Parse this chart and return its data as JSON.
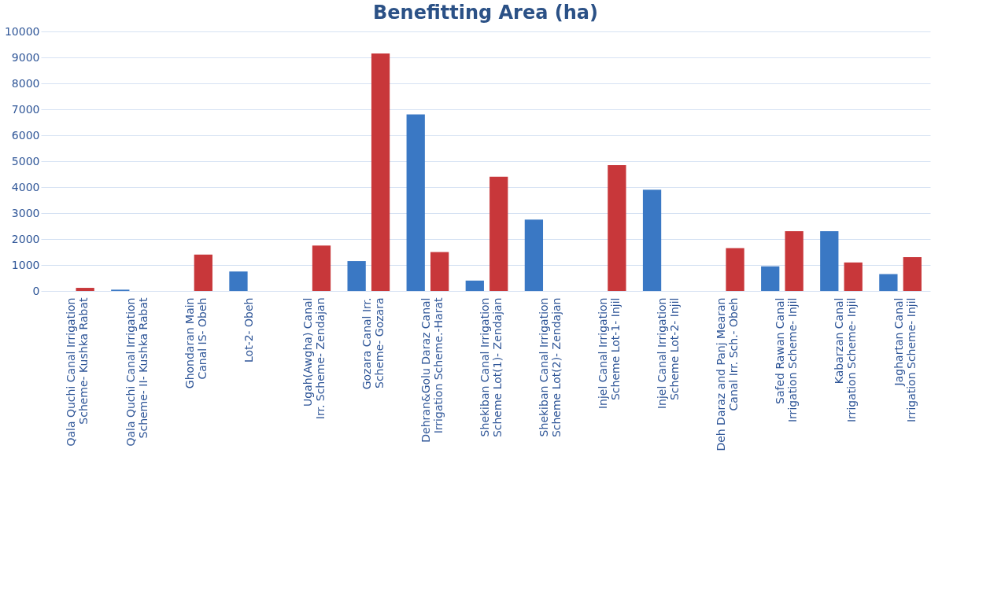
{
  "chart_data": {
    "type": "bar",
    "title": "Benefitting Area (ha)",
    "categories": [
      "Qala Quchi Canal Irrigation Scheme- Kushka Rabat",
      "Qala Quchi Canal Irrigation Scheme- II- Kushka Rabat",
      "Ghondaran Main Canal IS- Obeh",
      "Lot-2- Obeh",
      "Ugah(Awgha) Canal Irr. Scheme- Zendajan",
      "Gozara Canal Irr. Scheme- Gozara",
      "Dehran&Golu Daraz Canal Irrigation Scheme.-Harat",
      "Shekiban Canal Irrigation Scheme Lot(1)- Zendajan",
      "Shekiban Canal Irrigation Scheme Lot(2)- Zendajan",
      "Injel Canal Irrigation Scheme Lot-1- Injil",
      "Injel Canal Irrigation Scheme Lot-2- Injil",
      "Deh Daraz and Panj Mearan Canal Irr. Sch.- Obeh",
      "Safed Rawan Canal Irrigation Scheme- Injil",
      "Kabarzan Canal Irrigation Scheme- Injil",
      "Jaghartan Canal Irrigation Scheme- Injil"
    ],
    "series": [
      {
        "color": "#3a78c4",
        "values": [
          null,
          50,
          null,
          750,
          null,
          1150,
          6800,
          400,
          2750,
          null,
          3900,
          null,
          950,
          2300,
          650
        ]
      },
      {
        "color": "#c8373a",
        "values": [
          120,
          null,
          1400,
          null,
          1750,
          9150,
          1500,
          4400,
          null,
          4850,
          null,
          1650,
          2300,
          1100,
          1300
        ]
      }
    ],
    "ylim": [
      0,
      10000
    ],
    "yticks": [
      0,
      1000,
      2000,
      3000,
      4000,
      5000,
      6000,
      7000,
      8000,
      9000,
      10000
    ],
    "grid": "y",
    "legend": false
  }
}
